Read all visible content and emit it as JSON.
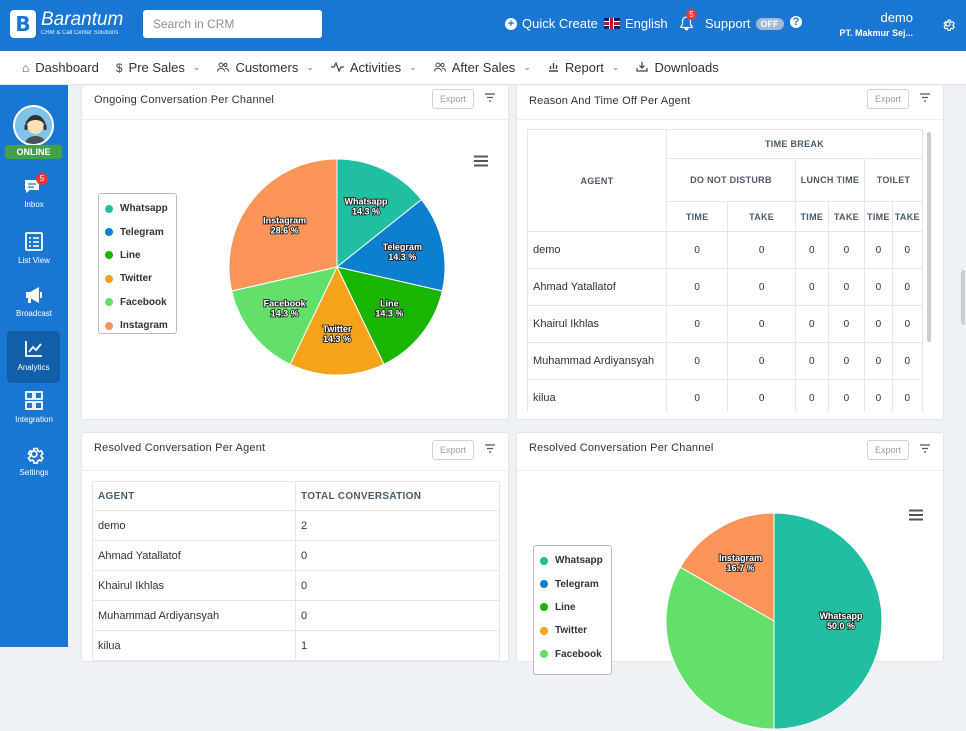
{
  "header": {
    "brand_name": "Barantum",
    "brand_tagline": "CRM & Call Center Solutions",
    "search_placeholder": "Search in CRM",
    "quick_create": "Quick Create",
    "language": "English",
    "notification_count": "5",
    "support": "Support",
    "support_toggle": "OFF",
    "help": "?",
    "user_name": "demo",
    "user_org": "PT. Makmur Sej..."
  },
  "nav": {
    "items": [
      {
        "label": "Dashboard",
        "icon": "home-icon"
      },
      {
        "label": "Pre Sales",
        "icon": "dollar-icon"
      },
      {
        "label": "Customers",
        "icon": "users-icon"
      },
      {
        "label": "Activities",
        "icon": "activity-icon"
      },
      {
        "label": "After Sales",
        "icon": "users-icon"
      },
      {
        "label": "Report",
        "icon": "report-icon"
      },
      {
        "label": "Downloads",
        "icon": "download-icon"
      }
    ]
  },
  "sidebar": {
    "status": "ONLINE",
    "inbox_badge": "5",
    "items": [
      {
        "label": "Inbox",
        "icon": "chat-icon"
      },
      {
        "label": "List View",
        "icon": "list-icon"
      },
      {
        "label": "Broadcast",
        "icon": "megaphone-icon"
      },
      {
        "label": "Analytics",
        "icon": "chart-icon",
        "active": true
      },
      {
        "label": "Integration",
        "icon": "grid-icon"
      },
      {
        "label": "Settings",
        "icon": "gear-icon"
      }
    ]
  },
  "cards": {
    "ongoing": {
      "title": "Ongoing Conversation Per Channel",
      "export": "Export"
    },
    "reason": {
      "title": "Reason And Time Off Per Agent",
      "export": "Export"
    },
    "resolved_agent": {
      "title": "Resolved Conversation Per Agent",
      "export": "Export"
    },
    "resolved_channel": {
      "title": "Resolved Conversation Per Channel",
      "export": "Export"
    }
  },
  "legend": [
    "Whatsapp",
    "Telegram",
    "Line",
    "Twitter",
    "Facebook",
    "Instagram"
  ],
  "legend2": [
    "Whatsapp",
    "Telegram",
    "Line",
    "Twitter",
    "Facebook"
  ],
  "colors": {
    "Whatsapp": "#1fbf9f",
    "Telegram": "#0d7fd0",
    "Line": "#19b500",
    "Twitter": "#f7a21b",
    "Facebook": "#62e06b",
    "Instagram": "#fa9458",
    "primary": "#1976d2",
    "online": "#43a047"
  },
  "reason_table": {
    "agent_header": "AGENT",
    "group_header": "TIME BREAK",
    "categories": [
      "DO NOT DISTURB",
      "LUNCH TIME",
      "TOILET"
    ],
    "sub_headers": [
      "TIME",
      "TAKE",
      "TIME",
      "TAKE",
      "TIME",
      "TAKE"
    ],
    "rows": [
      {
        "agent": "demo",
        "values": [
          "0",
          "0",
          "0",
          "0",
          "0",
          "0"
        ]
      },
      {
        "agent": "Ahmad Yatallatof",
        "values": [
          "0",
          "0",
          "0",
          "0",
          "0",
          "0"
        ]
      },
      {
        "agent": "Khairul Ikhlas",
        "values": [
          "0",
          "0",
          "0",
          "0",
          "0",
          "0"
        ]
      },
      {
        "agent": "Muhammad Ardiyansyah",
        "values": [
          "0",
          "0",
          "0",
          "0",
          "0",
          "0"
        ]
      },
      {
        "agent": "kilua",
        "values": [
          "0",
          "0",
          "0",
          "0",
          "0",
          "0"
        ]
      }
    ]
  },
  "agent_table": {
    "headers": [
      "AGENT",
      "TOTAL CONVERSATION"
    ],
    "rows": [
      [
        "demo",
        "2"
      ],
      [
        "Ahmad Yatallatof",
        "0"
      ],
      [
        "Khairul Ikhlas",
        "0"
      ],
      [
        "Muhammad Ardiyansyah",
        "0"
      ],
      [
        "kilua",
        "1"
      ]
    ]
  },
  "chart_data": [
    {
      "type": "pie",
      "title": "Ongoing Conversation Per Channel",
      "categories": [
        "Whatsapp",
        "Telegram",
        "Line",
        "Twitter",
        "Facebook",
        "Instagram"
      ],
      "values": [
        14.3,
        14.3,
        14.3,
        14.3,
        14.3,
        28.6
      ],
      "labels": [
        "14.3 %",
        "14.3 %",
        "14.3 %",
        "14.3 %",
        "14.3 %",
        "28.6 %"
      ]
    },
    {
      "type": "pie",
      "title": "Resolved Conversation Per Channel",
      "categories": [
        "Whatsapp",
        "Telegram",
        "Line",
        "Twitter",
        "Facebook",
        "Instagram"
      ],
      "values": [
        50.0,
        0,
        0,
        0,
        33.3,
        16.7
      ],
      "visible_labels": {
        "Whatsapp": "50.0 %",
        "Instagram": "16.7 %"
      }
    }
  ]
}
